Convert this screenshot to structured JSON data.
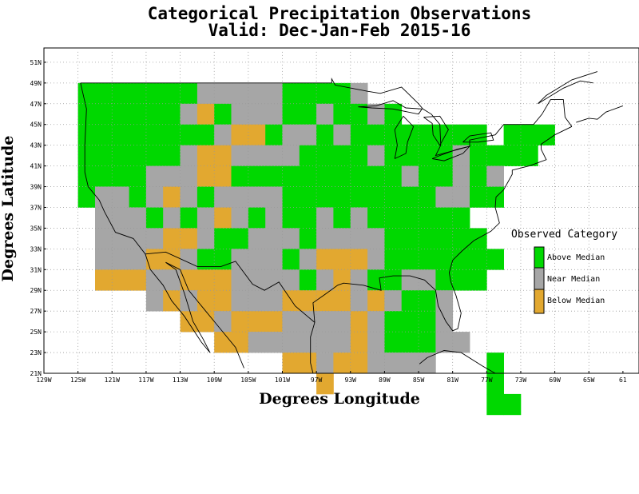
{
  "title": "Categorical Precipitation Observations",
  "subtitle": "Valid: Dec-Jan-Feb 2015-16",
  "xlabel": "Degrees Longitude",
  "ylabel": "Degrees Latitude",
  "colors": {
    "above": "#00d800",
    "near": "#a6a6a6",
    "below": "#e2a830",
    "grid": "#999999",
    "coast": "#000000"
  },
  "legend": {
    "title": "Observed Category",
    "items": [
      {
        "key": "A",
        "label": "Above Median",
        "color": "#00d800"
      },
      {
        "key": "N",
        "label": "Near Median",
        "color": "#a6a6a6"
      },
      {
        "key": "B",
        "label": "Below Median",
        "color": "#e2a830"
      }
    ]
  },
  "chart_data": {
    "type": "heatmap",
    "title": "Categorical Precipitation Observations",
    "subtitle": "Valid: Dec-Jan-Feb 2015-16",
    "xlabel": "Degrees Longitude",
    "ylabel": "Degrees Latitude",
    "xlim": [
      -129,
      -61
    ],
    "ylim": [
      21,
      52
    ],
    "x_ticks": [
      "129W",
      "125W",
      "121W",
      "117W",
      "113W",
      "109W",
      "105W",
      "101W",
      "97W",
      "93W",
      "89W",
      "85W",
      "81W",
      "77W",
      "73W",
      "69W",
      "65W",
      "61"
    ],
    "y_ticks": [
      "21N",
      "23N",
      "25N",
      "27N",
      "29N",
      "31N",
      "33N",
      "35N",
      "37N",
      "39N",
      "41N",
      "43N",
      "45N",
      "47N",
      "49N",
      "51N"
    ],
    "grid_cell_degrees": 2,
    "grid_west_lon": -125,
    "grid_north_lat": 49,
    "rows": [
      "AAAAAAANNNNNAAAAN...",
      "AAAAAANBANNNAANAANA...............",
      "AAAAAAAANBBANNANAAAAAAAA.AAA",
      "AAAAAANBBNNNNAAAANAAAANAAAA",
      "AAAANNNBBAAAAAAAAAANAANAN",
      "ANNANBNANNNNAAAAAAAAANNAA",
      ".NNNANANBNANAANANAAAAAA",
      ".NNNNBBNAANNNANNNNAAAAAA",
      ".NNNBBNAANNNANBBBNAAAAAAA",
      ".BBBNNBBBNNNNANBNAANNAAA",
      "....NBNBBNNNBBBBNBNAAN",
      "......BBNBBBNNNNBNAAAN",
      "........BBNNNNNNBNAAANN",
      "............BBNBBNNNN...A",
      "..............B.........A",
      "........................AA"
    ],
    "legend_title": "Observed Category",
    "legend": [
      "Above Median",
      "Near Median",
      "Below Median"
    ],
    "legend_placement": "right",
    "grid": true
  }
}
